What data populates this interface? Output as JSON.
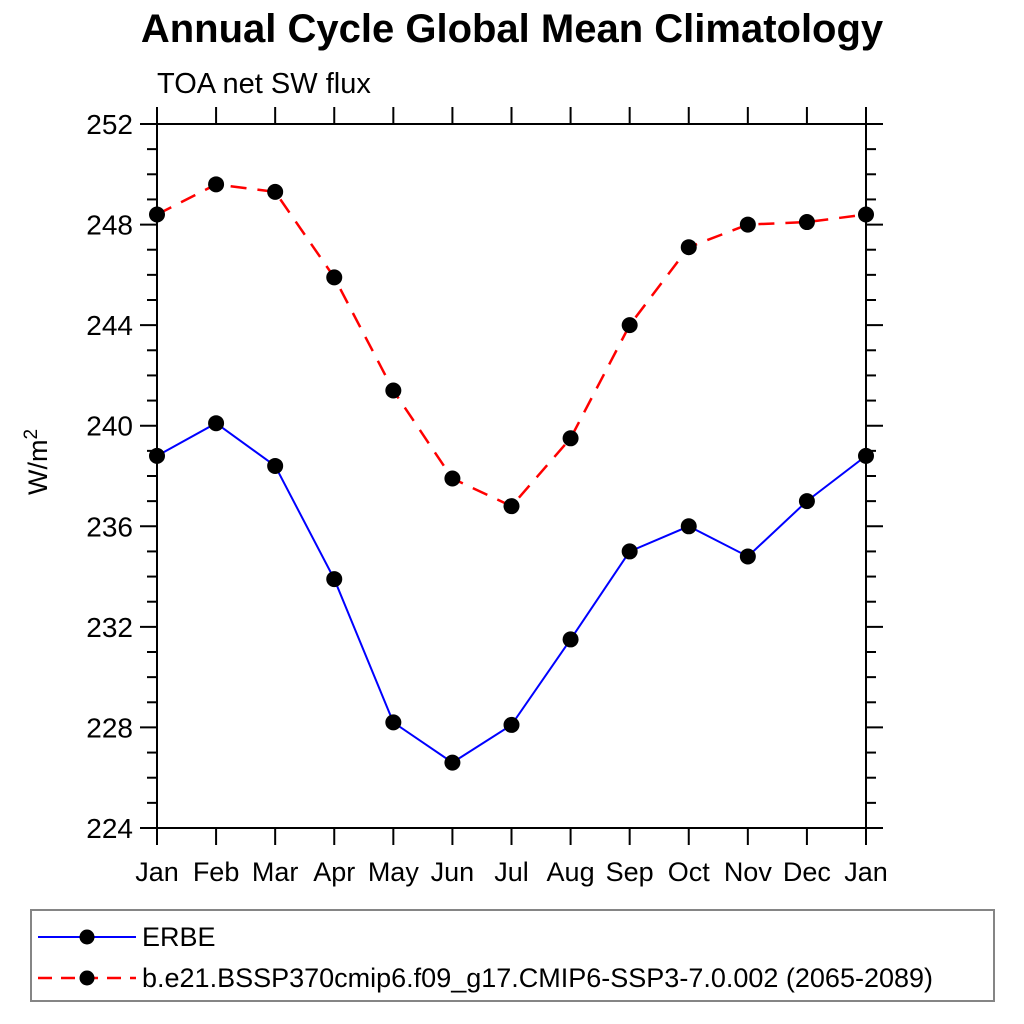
{
  "page": {
    "background": "#ffffff"
  },
  "header": {
    "title": "Annual Cycle Global Mean Climatology",
    "subtitle": "TOA net SW flux"
  },
  "chart_data": {
    "type": "line",
    "title": "Annual Cycle Global Mean Climatology",
    "subtitle": "TOA net SW flux",
    "ylabel_base": "W/m",
    "ylabel_sup": "2",
    "categories": [
      "Jan",
      "Feb",
      "Mar",
      "Apr",
      "May",
      "Jun",
      "Jul",
      "Aug",
      "Sep",
      "Oct",
      "Nov",
      "Dec",
      "Jan"
    ],
    "ylim": [
      224,
      252
    ],
    "ytick_major": [
      224,
      228,
      232,
      236,
      240,
      244,
      248,
      252
    ],
    "ytick_minor_step": 1,
    "grid": false,
    "legend_position": "bottom-left-box",
    "axis_color": "#000000",
    "legend_border_color": "#858585",
    "series": [
      {
        "name": "ERBE",
        "color": "#0000ff",
        "line_style": "solid",
        "marker": "circle",
        "marker_color": "#000000",
        "values": [
          238.8,
          240.1,
          238.4,
          233.9,
          228.2,
          226.6,
          228.1,
          231.5,
          235.0,
          236.0,
          234.8,
          237.0,
          238.8
        ]
      },
      {
        "name": "b.e21.BSSP370cmip6.f09_g17.CMIP6-SSP3-7.0.002 (2065-2089)",
        "color": "#ff0000",
        "line_style": "dashed",
        "marker": "circle",
        "marker_color": "#000000",
        "values": [
          248.4,
          249.6,
          249.3,
          245.9,
          241.4,
          237.9,
          236.8,
          239.5,
          244.0,
          247.1,
          248.0,
          248.1,
          248.4
        ]
      }
    ]
  }
}
